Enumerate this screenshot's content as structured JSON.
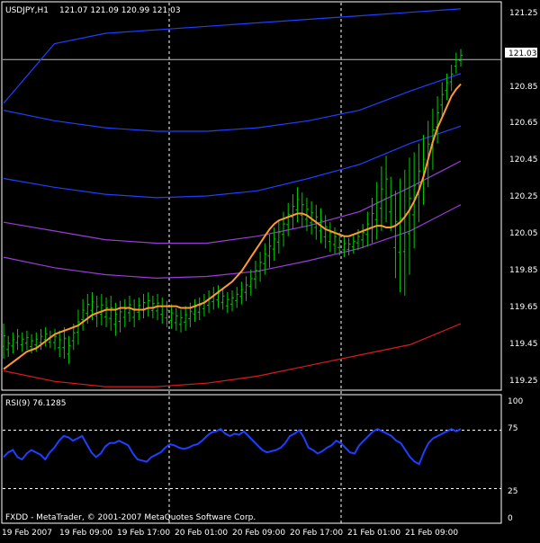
{
  "main_header": {
    "symbol": "USDJPY,H1",
    "ohlc": "121.07 121.09 120.99 121.03"
  },
  "price_scale": {
    "labels": [
      "121.25",
      "120.85",
      "120.65",
      "120.45",
      "120.25",
      "120.05",
      "119.85",
      "119.65",
      "119.45",
      "119.25"
    ],
    "current_price": "121.03"
  },
  "rsi_panel": {
    "title": "RSI(9) 76.1285",
    "labels": [
      "100",
      "75",
      "25",
      "0"
    ]
  },
  "copyright": "FXDD - MetaTrader, © 2001-2007 MetaQuotes Software Corp.",
  "time_axis": {
    "labels": [
      "19 Feb 2007",
      "19 Feb 09:00",
      "19 Feb 17:00",
      "20 Feb 01:00",
      "20 Feb 09:00",
      "20 Feb 17:00",
      "21 Feb 01:00",
      "21 Feb 09:00"
    ]
  },
  "colors": {
    "background": "#000000",
    "grid": "#ffffff",
    "bars": "#00cc00",
    "ma": "#ff9a2e",
    "envelope_blue": "#1f3fff",
    "envelope_purple": "#9a3cd8",
    "envelope_red": "#dd1a1a",
    "rsi": "#1f3fff"
  },
  "chart_data": [
    {
      "type": "line",
      "name": "USDJPY,H1",
      "ylim": [
        119.15,
        121.35
      ],
      "yticks": [
        121.25,
        120.85,
        120.65,
        120.45,
        120.25,
        120.05,
        119.85,
        119.65,
        119.45,
        119.25
      ],
      "x_categories": [
        "19 Feb 2007",
        "19 Feb 09:00",
        "19 Feb 17:00",
        "20 Feb 01:00",
        "20 Feb 09:00",
        "20 Feb 17:00",
        "21 Feb 01:00",
        "21 Feb 09:00"
      ],
      "current_price": 121.03,
      "price_bars": [
        [
          119.52,
          119.32
        ],
        [
          119.45,
          119.33
        ],
        [
          119.47,
          119.35
        ],
        [
          119.49,
          119.37
        ],
        [
          119.47,
          119.36
        ],
        [
          119.48,
          119.37
        ],
        [
          119.46,
          119.35
        ],
        [
          119.47,
          119.36
        ],
        [
          119.49,
          119.37
        ],
        [
          119.5,
          119.39
        ],
        [
          119.48,
          119.38
        ],
        [
          119.49,
          119.37
        ],
        [
          119.48,
          119.33
        ],
        [
          119.5,
          119.32
        ],
        [
          119.45,
          119.29
        ],
        [
          119.52,
          119.37
        ],
        [
          119.6,
          119.4
        ],
        [
          119.66,
          119.48
        ],
        [
          119.69,
          119.52
        ],
        [
          119.7,
          119.54
        ],
        [
          119.68,
          119.5
        ],
        [
          119.69,
          119.51
        ],
        [
          119.67,
          119.5
        ],
        [
          119.68,
          119.48
        ],
        [
          119.64,
          119.45
        ],
        [
          119.65,
          119.47
        ],
        [
          119.66,
          119.5
        ],
        [
          119.68,
          119.53
        ],
        [
          119.66,
          119.5
        ],
        [
          119.67,
          119.54
        ],
        [
          119.69,
          119.55
        ],
        [
          119.7,
          119.56
        ],
        [
          119.68,
          119.55
        ],
        [
          119.69,
          119.54
        ],
        [
          119.67,
          119.52
        ],
        [
          119.65,
          119.5
        ],
        [
          119.63,
          119.49
        ],
        [
          119.61,
          119.48
        ],
        [
          119.6,
          119.47
        ],
        [
          119.62,
          119.48
        ],
        [
          119.64,
          119.5
        ],
        [
          119.66,
          119.53
        ],
        [
          119.67,
          119.54
        ],
        [
          119.69,
          119.56
        ],
        [
          119.71,
          119.58
        ],
        [
          119.73,
          119.6
        ],
        [
          119.74,
          119.61
        ],
        [
          119.72,
          119.6
        ],
        [
          119.7,
          119.58
        ],
        [
          119.71,
          119.59
        ],
        [
          119.73,
          119.61
        ],
        [
          119.76,
          119.63
        ],
        [
          119.79,
          119.65
        ],
        [
          119.83,
          119.68
        ],
        [
          119.88,
          119.72
        ],
        [
          119.93,
          119.76
        ],
        [
          119.98,
          119.8
        ],
        [
          120.03,
          119.84
        ],
        [
          120.07,
          119.88
        ],
        [
          120.11,
          119.92
        ],
        [
          120.16,
          119.96
        ],
        [
          120.21,
          120.02
        ],
        [
          120.26,
          120.06
        ],
        [
          120.3,
          120.1
        ],
        [
          120.27,
          120.07
        ],
        [
          120.24,
          120.05
        ],
        [
          120.22,
          120.03
        ],
        [
          120.2,
          120.0
        ],
        [
          120.18,
          119.98
        ],
        [
          120.14,
          119.95
        ],
        [
          120.1,
          119.93
        ],
        [
          120.07,
          119.92
        ],
        [
          120.04,
          119.91
        ],
        [
          120.02,
          119.9
        ],
        [
          120.01,
          119.91
        ],
        [
          120.03,
          119.92
        ],
        [
          120.06,
          119.94
        ],
        [
          120.09,
          119.95
        ],
        [
          120.16,
          119.96
        ],
        [
          120.24,
          119.98
        ],
        [
          120.33,
          120.0
        ],
        [
          120.42,
          120.05
        ],
        [
          120.48,
          120.1
        ],
        [
          120.36,
          120.05
        ],
        [
          120.28,
          119.78
        ],
        [
          120.35,
          119.7
        ],
        [
          120.4,
          119.68
        ],
        [
          120.47,
          119.8
        ],
        [
          120.5,
          119.95
        ],
        [
          120.55,
          120.1
        ],
        [
          120.6,
          120.2
        ],
        [
          120.68,
          120.3
        ],
        [
          120.75,
          120.4
        ],
        [
          120.82,
          120.55
        ],
        [
          120.9,
          120.7
        ],
        [
          120.95,
          120.8
        ],
        [
          121.0,
          120.85
        ],
        [
          121.07,
          120.95
        ],
        [
          121.09,
          120.99
        ]
      ],
      "ma": [
        119.26,
        119.28,
        119.3,
        119.32,
        119.34,
        119.36,
        119.37,
        119.38,
        119.4,
        119.42,
        119.44,
        119.46,
        119.47,
        119.48,
        119.49,
        119.5,
        119.51,
        119.53,
        119.55,
        119.57,
        119.58,
        119.59,
        119.6,
        119.6,
        119.6,
        119.61,
        119.61,
        119.61,
        119.6,
        119.6,
        119.6,
        119.61,
        119.61,
        119.62,
        119.62,
        119.62,
        119.62,
        119.62,
        119.61,
        119.61,
        119.61,
        119.62,
        119.63,
        119.64,
        119.66,
        119.68,
        119.7,
        119.72,
        119.74,
        119.76,
        119.79,
        119.82,
        119.86,
        119.9,
        119.94,
        119.98,
        120.02,
        120.06,
        120.09,
        120.11,
        120.12,
        120.13,
        120.14,
        120.15,
        120.15,
        120.14,
        120.12,
        120.1,
        120.08,
        120.06,
        120.05,
        120.04,
        120.03,
        120.02,
        120.02,
        120.03,
        120.04,
        120.05,
        120.06,
        120.07,
        120.08,
        120.08,
        120.07,
        120.07,
        120.08,
        120.1,
        120.13,
        120.17,
        120.22,
        120.28,
        120.36,
        120.46,
        120.56,
        120.64,
        120.7,
        120.76,
        120.82,
        120.86,
        120.89
      ],
      "envelope_blue_top": [
        120.78,
        121.12,
        121.18,
        121.2,
        121.22,
        121.24,
        121.26,
        121.28,
        121.3,
        121.32
      ],
      "envelope_blue_mid": [
        120.74,
        120.68,
        120.64,
        120.62,
        120.62,
        120.64,
        120.68,
        120.74,
        120.85,
        120.95
      ],
      "envelope_blue_low": [
        120.35,
        120.3,
        120.26,
        120.24,
        120.25,
        120.28,
        120.35,
        120.43,
        120.55,
        120.65
      ],
      "envelope_purple_1": [
        120.1,
        120.05,
        120.0,
        119.98,
        119.98,
        120.02,
        120.08,
        120.16,
        120.3,
        120.45
      ],
      "envelope_purple_2": [
        119.9,
        119.84,
        119.8,
        119.78,
        119.79,
        119.82,
        119.88,
        119.95,
        120.05,
        120.2
      ],
      "envelope_red": [
        119.25,
        119.19,
        119.16,
        119.16,
        119.18,
        119.22,
        119.28,
        119.34,
        119.4,
        119.52
      ]
    },
    {
      "type": "line",
      "name": "RSI(9)",
      "ylim": [
        0,
        100
      ],
      "yticks": [
        100,
        75,
        25,
        0
      ],
      "last_value": 76.1285,
      "values": [
        52,
        56,
        58,
        52,
        50,
        55,
        58,
        56,
        54,
        50,
        56,
        60,
        66,
        70,
        69,
        66,
        68,
        70,
        63,
        56,
        52,
        55,
        61,
        64,
        64,
        66,
        64,
        62,
        55,
        50,
        49,
        48,
        52,
        54,
        56,
        60,
        63,
        62,
        60,
        59,
        60,
        62,
        63,
        66,
        70,
        73,
        74,
        76,
        72,
        70,
        72,
        71,
        74,
        70,
        66,
        62,
        58,
        56,
        57,
        58,
        60,
        64,
        70,
        72,
        75,
        69,
        60,
        58,
        55,
        57,
        60,
        62,
        66,
        64,
        60,
        56,
        55,
        62,
        66,
        70,
        74,
        76,
        74,
        72,
        70,
        66,
        64,
        58,
        52,
        48,
        46,
        56,
        64,
        68,
        70,
        72,
        74,
        76,
        74,
        76
      ]
    }
  ]
}
